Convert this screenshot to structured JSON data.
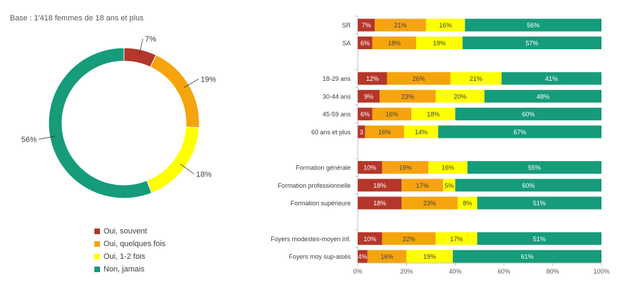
{
  "base_note": "Base : 1'418 femmes de 18 ans et plus",
  "colors": {
    "souvent": "#B5362A",
    "quelques": "#F6A40E",
    "une_deux": "#FFFF00",
    "jamais": "#169B7B"
  },
  "legend": [
    {
      "key": "souvent",
      "label": "Oui, souvent"
    },
    {
      "key": "quelques",
      "label": "Oui, quelques fois"
    },
    {
      "key": "une_deux",
      "label": "Oui, 1-2 fois"
    },
    {
      "key": "jamais",
      "label": "Non, jamais"
    }
  ],
  "chart_data": [
    {
      "type": "pie",
      "subtype": "donut",
      "title": "",
      "slices": [
        {
          "key": "souvent",
          "label": "Oui, souvent",
          "value": 7,
          "display": "7%"
        },
        {
          "key": "quelques",
          "label": "Oui, quelques fois",
          "value": 19,
          "display": "19%"
        },
        {
          "key": "une_deux",
          "label": "Oui, 1-2 fois",
          "value": 18,
          "display": "18%"
        },
        {
          "key": "jamais",
          "label": "Non, jamais",
          "value": 56,
          "display": "56%"
        }
      ]
    },
    {
      "type": "bar",
      "orientation": "horizontal",
      "stacked": true,
      "xlim": [
        0,
        100
      ],
      "x_ticks": [
        "0%",
        "20%",
        "40%",
        "60%",
        "80%",
        "100%"
      ],
      "series_keys": [
        "souvent",
        "quelques",
        "une_deux",
        "jamais"
      ],
      "groups": [
        {
          "rows": [
            {
              "label": "SR",
              "values": [
                7,
                21,
                16,
                56
              ],
              "labels": [
                "7%",
                "21%",
                "16%",
                "56%"
              ]
            },
            {
              "label": "SA",
              "values": [
                6,
                18,
                19,
                57
              ],
              "labels": [
                "6%",
                "18%",
                "19%",
                "57%"
              ]
            }
          ]
        },
        {
          "rows": [
            {
              "label": "18-29 ans",
              "values": [
                12,
                26,
                21,
                41
              ],
              "labels": [
                "12%",
                "26%",
                "21%",
                "41%"
              ]
            },
            {
              "label": "30-44 ans",
              "values": [
                9,
                23,
                20,
                48
              ],
              "labels": [
                "9%",
                "23%",
                "20%",
                "48%"
              ]
            },
            {
              "label": "45-59 ans",
              "values": [
                6,
                16,
                18,
                60
              ],
              "labels": [
                "6%",
                "16%",
                "18%",
                "60%"
              ]
            },
            {
              "label": "60 ans et plus",
              "values": [
                3,
                16,
                14,
                67
              ],
              "labels": [
                "3",
                "16%",
                "14%",
                "67%"
              ]
            }
          ]
        },
        {
          "rows": [
            {
              "label": "Formation générale",
              "values": [
                10,
                19,
                16,
                55
              ],
              "labels": [
                "10%",
                "19%",
                "16%",
                "55%"
              ]
            },
            {
              "label": "Formation professionnelle",
              "values": [
                18,
                17,
                5,
                60
              ],
              "labels": [
                "18%",
                "17%",
                "5%",
                "60%"
              ]
            },
            {
              "label": "Formation supérieure",
              "values": [
                18,
                23,
                8,
                51
              ],
              "labels": [
                "18%",
                "23%",
                "8%",
                "51%"
              ]
            }
          ]
        },
        {
          "rows": [
            {
              "label": "Foyers modestes-moyen inf.",
              "values": [
                10,
                22,
                17,
                51
              ],
              "labels": [
                "10%",
                "22%",
                "17%",
                "51%"
              ]
            },
            {
              "label": "Foyers moy sup-aisés",
              "values": [
                4,
                16,
                19,
                61
              ],
              "labels": [
                "4%",
                "16%",
                "19%",
                "61%"
              ]
            }
          ]
        }
      ]
    }
  ]
}
